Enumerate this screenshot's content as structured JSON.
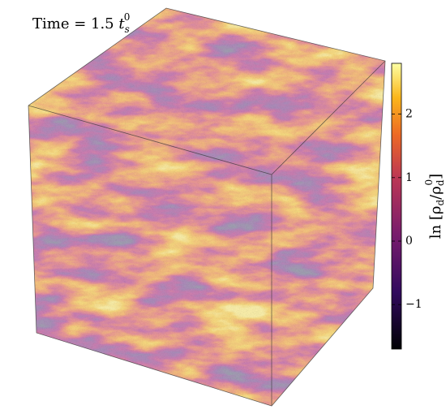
{
  "chart_data": {
    "type": "volume",
    "title": {
      "text": "Time = 1.5 ",
      "var": "t",
      "sub": "s",
      "sup": "0"
    },
    "colorbar": {
      "label": [
        "ln [ρ",
        "d",
        "/ρ",
        "d",
        "0",
        "]"
      ],
      "lim": [
        -1.7,
        2.8
      ],
      "ticks": [
        {
          "value": -1,
          "label": "−1"
        },
        0,
        1,
        2
      ]
    }
  }
}
